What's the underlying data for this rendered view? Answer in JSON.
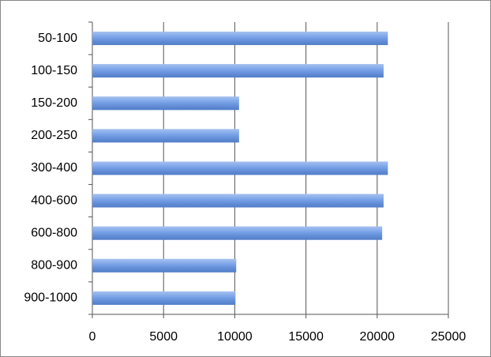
{
  "chart_data": {
    "type": "hbar",
    "categories": [
      "50-100",
      "100-150",
      "150-200",
      "200-250",
      "300-400",
      "400-600",
      "600-800",
      "800-900",
      "900-1000"
    ],
    "values": [
      20750,
      20450,
      10300,
      10300,
      20750,
      20450,
      20350,
      10100,
      10050
    ],
    "color": "#5d8fe3",
    "xlim": [
      0,
      25000
    ],
    "xticks": [
      0,
      5000,
      10000,
      15000,
      20000,
      25000
    ],
    "grid": true
  }
}
